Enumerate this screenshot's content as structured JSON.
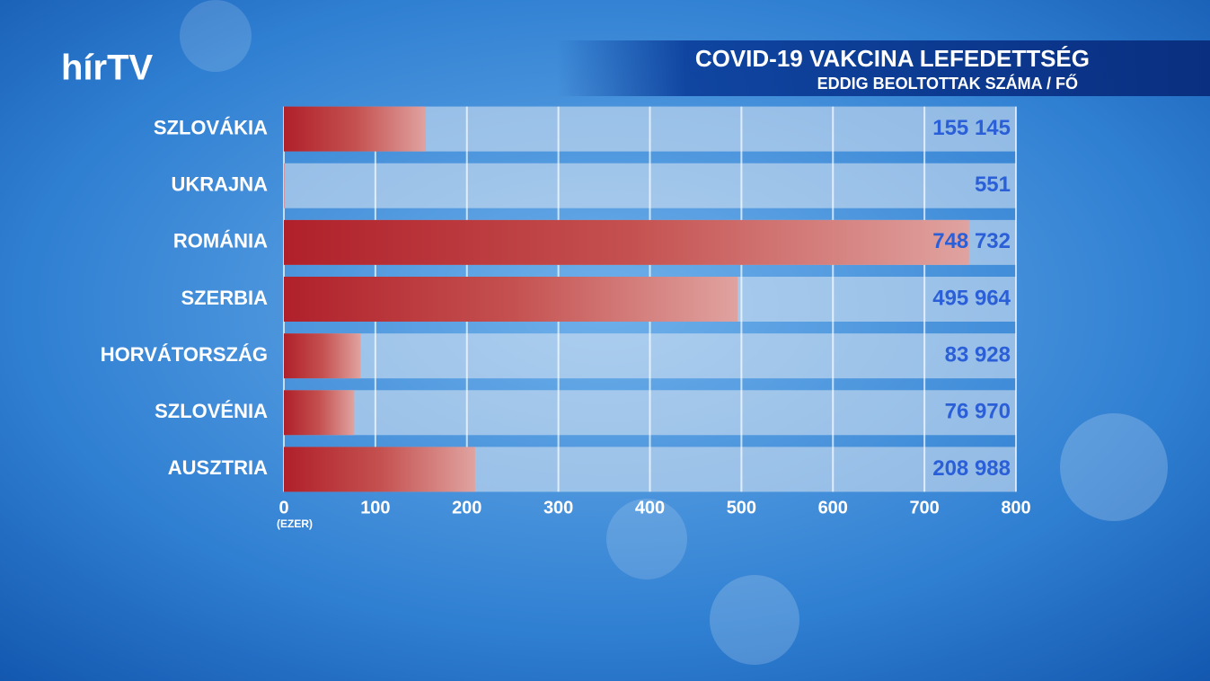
{
  "logo": "hírTV",
  "chart_data": {
    "type": "bar",
    "orientation": "horizontal",
    "title": "COVID-19 VAKCINA LEFEDETTSÉG",
    "subtitle": "EDDIG BEOLTOTTAK SZÁMA / FŐ",
    "x_unit_label": "(EZER)",
    "categories": [
      "SZLOVÁKIA",
      "UKRAJNA",
      "ROMÁNIA",
      "SZERBIA",
      "HORVÁTORSZÁG",
      "SZLOVÉNIA",
      "AUSZTRIA"
    ],
    "values": [
      155.145,
      0.551,
      748.732,
      495.964,
      83.928,
      76.97,
      208.988
    ],
    "value_labels": [
      "155 145",
      "551",
      "748 732",
      "495 964",
      "83 928",
      "76 970",
      "208 988"
    ],
    "color": "#b0202a",
    "xlim": [
      0,
      800
    ],
    "xticks": [
      0,
      100,
      200,
      300,
      400,
      500,
      600,
      700,
      800
    ],
    "grid": true
  }
}
